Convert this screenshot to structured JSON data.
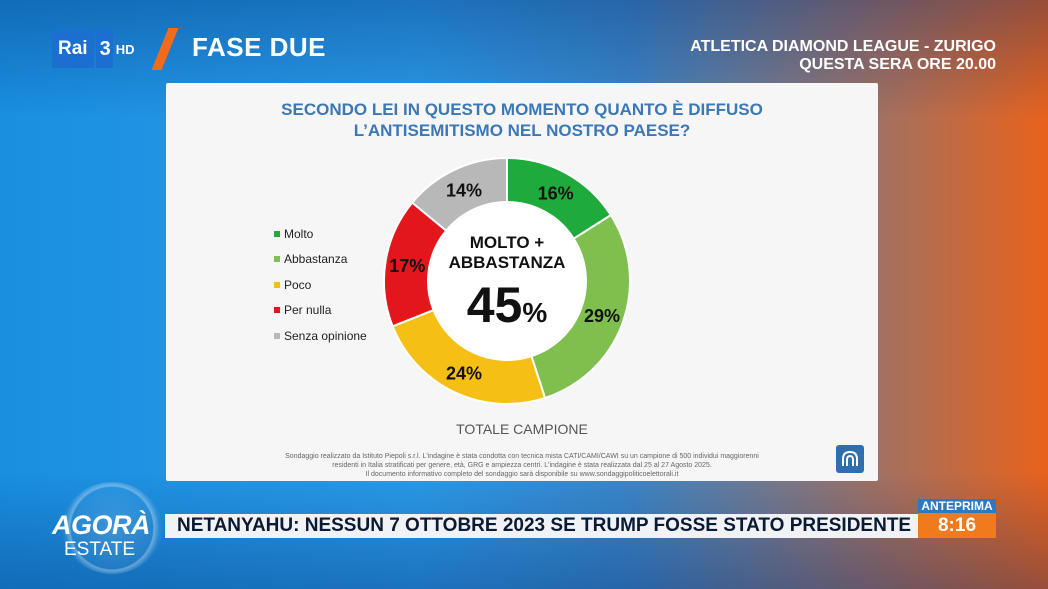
{
  "header": {
    "channel_logo_rai": "Rai",
    "channel_logo_number": "3",
    "channel_logo_hd": "HD",
    "program_title": "FASE DUE",
    "promo_line1": "ATLETICA DIAMOND LEAGUE - ZURIGO",
    "promo_line2": "QUESTA SERA ORE 20.00"
  },
  "chart_data": {
    "type": "pie",
    "title": "SECONDO LEI IN QUESTO MOMENTO QUANTO È DIFFUSO L’ANTISEMITISMO NEL NOSTRO PAESE?",
    "title_lines": [
      "SECONDO LEI IN QUESTO MOMENTO QUANTO È DIFFUSO",
      "L’ANTISEMITISMO NEL NOSTRO PAESE?"
    ],
    "categories": [
      "Molto",
      "Abbastanza",
      "Poco",
      "Per nulla",
      "Senza opinione"
    ],
    "values": [
      16,
      29,
      24,
      17,
      14
    ],
    "value_labels": [
      "16%",
      "29%",
      "24%",
      "17%",
      "14%"
    ],
    "colors": [
      "#1faa3c",
      "#7fbf4e",
      "#f5bf16",
      "#e3161b",
      "#b8b8b8"
    ],
    "legend_position": "left",
    "center_label_lines": [
      "MOLTO +",
      "ABBASTANZA"
    ],
    "center_value": "45",
    "center_value_unit": "%",
    "footer_label": "TOTALE CAMPIONE",
    "note_lines": [
      "Sondaggio realizzato da Istituto Piepoli s.r.l. L'indagine è stata condotta con tecnica mista CATI/CAMI/CAWI su un campione di 500 individui maggiorenni",
      "residenti in Italia stratificati per genere, età, GRG e ampiezza centri. L'indagine è stata realizzata dal 25 al 27 Agosto 2025.",
      "Il documento informativo completo del sondaggio sarà disponibile su www.sondaggipoliticoelettorali.it"
    ]
  },
  "bottom": {
    "show_name": "AGORÀ",
    "show_subtitle": "ESTATE",
    "ticker_text": "NETANYAHU: NESSUN 7 OTTOBRE 2023 SE TRUMP FOSSE STATO PRESIDENTE",
    "anteprima_label": "ANTEPRIMA",
    "anteprima_time": "8:16"
  }
}
